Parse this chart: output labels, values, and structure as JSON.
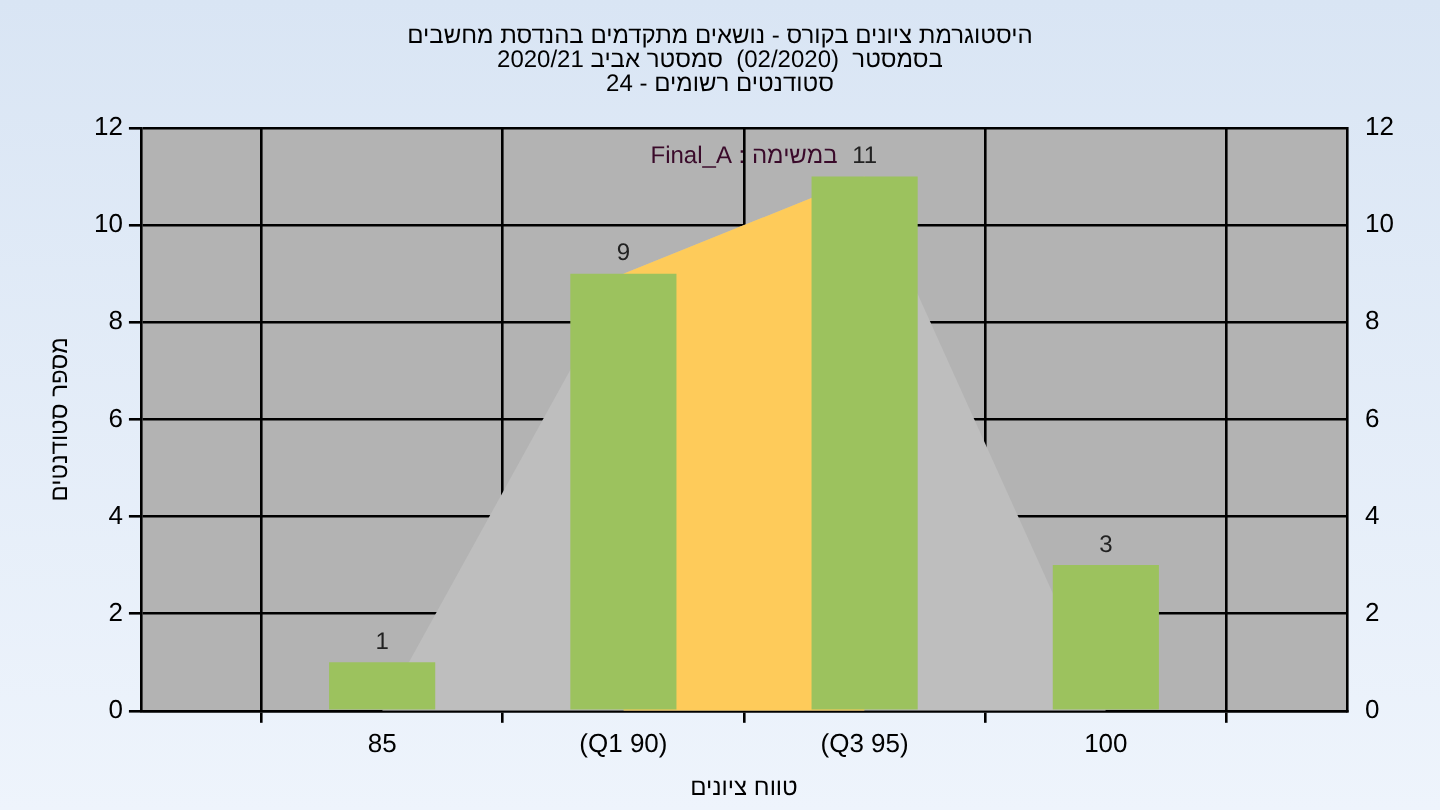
{
  "chart_data": {
    "type": "bar",
    "title": "היסטוגרמת ציונים בקורס - נושאים מתקדמים בהנדסת מחשבים\nבסמסטר  (02/2020)  סמסטר אביב 2020/21\nסטודנטים רשומים - 24",
    "xlabel": "טווח ציונים",
    "ylabel": "מספר סטודנטים",
    "annotations": [
      "במשימה : Final_A"
    ],
    "categories": [
      null,
      "85",
      "(Q1 90)",
      "(Q3 95)",
      "100",
      null
    ],
    "series": [
      {
        "type": "area",
        "color": "#bebebe",
        "values": [
          null,
          0,
          9,
          11,
          0,
          null
        ]
      },
      {
        "type": "area",
        "color": "#fecb5a",
        "values": [
          null,
          null,
          9,
          11,
          null,
          null
        ]
      },
      {
        "color": "#9cc25e",
        "values": [
          null,
          1,
          9,
          11,
          3,
          null
        ],
        "value_labels": [
          null,
          "1",
          "9",
          "11",
          "3",
          null
        ]
      }
    ],
    "ylim": [
      0,
      12
    ],
    "yticks": [
      0,
      2,
      4,
      6,
      8,
      10,
      12
    ],
    "y2lim": [
      0,
      12
    ],
    "y2ticks": [
      0,
      2,
      4,
      6,
      8,
      10,
      12
    ],
    "grid": true,
    "legend": false
  }
}
